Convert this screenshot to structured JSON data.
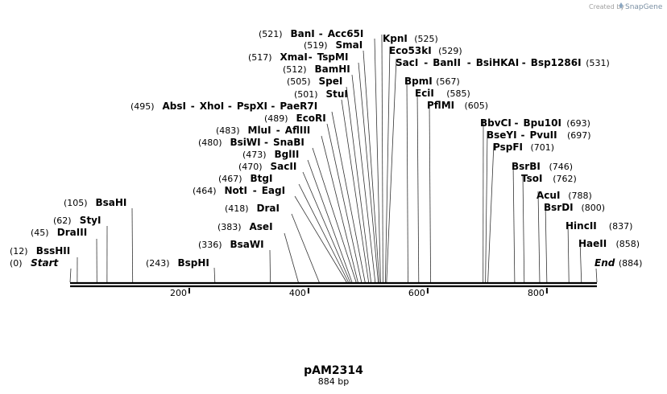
{
  "credit": {
    "prefix": "Created by",
    "brand": "SnapGene",
    "icon": "snapgene-logo-icon"
  },
  "plasmid": {
    "name": "pAM2314",
    "length_label": "884 bp",
    "length": 884
  },
  "ruler": {
    "ticks": [
      200,
      400,
      600,
      800
    ]
  },
  "sites": [
    {
      "pos": 0,
      "pos_label": "(0)",
      "names": [
        "Start"
      ],
      "italic": true
    },
    {
      "pos": 12,
      "pos_label": "(12)",
      "names": [
        "BssHII"
      ]
    },
    {
      "pos": 45,
      "pos_label": "(45)",
      "names": [
        "DraIII"
      ]
    },
    {
      "pos": 62,
      "pos_label": "(62)",
      "names": [
        "StyI"
      ]
    },
    {
      "pos": 105,
      "pos_label": "(105)",
      "names": [
        "BsaHI"
      ]
    },
    {
      "pos": 243,
      "pos_label": "(243)",
      "names": [
        "BspHI"
      ]
    },
    {
      "pos": 336,
      "pos_label": "(336)",
      "names": [
        "BsaWI"
      ]
    },
    {
      "pos": 383,
      "pos_label": "(383)",
      "names": [
        "AseI"
      ]
    },
    {
      "pos": 418,
      "pos_label": "(418)",
      "names": [
        "DraI"
      ]
    },
    {
      "pos": 464,
      "pos_label": "(464)",
      "names": [
        "NotI",
        "EagI"
      ]
    },
    {
      "pos": 467,
      "pos_label": "(467)",
      "names": [
        "BtgI"
      ]
    },
    {
      "pos": 470,
      "pos_label": "(470)",
      "names": [
        "SacII"
      ]
    },
    {
      "pos": 473,
      "pos_label": "(473)",
      "names": [
        "BglII"
      ]
    },
    {
      "pos": 480,
      "pos_label": "(480)",
      "names": [
        "BsiWI",
        "SnaBI"
      ]
    },
    {
      "pos": 483,
      "pos_label": "(483)",
      "names": [
        "MluI",
        "AflIII"
      ]
    },
    {
      "pos": 489,
      "pos_label": "(489)",
      "names": [
        "EcoRI"
      ]
    },
    {
      "pos": 495,
      "pos_label": "(495)",
      "names": [
        "AbsI",
        "XhoI",
        "PspXI",
        "PaeR7I"
      ]
    },
    {
      "pos": 501,
      "pos_label": "(501)",
      "names": [
        "StuI"
      ]
    },
    {
      "pos": 505,
      "pos_label": "(505)",
      "names": [
        "SpeI"
      ]
    },
    {
      "pos": 512,
      "pos_label": "(512)",
      "names": [
        "BamHI"
      ]
    },
    {
      "pos": 517,
      "pos_label": "(517)",
      "names": [
        "XmaI",
        "TspMI"
      ]
    },
    {
      "pos": 519,
      "pos_label": "(519)",
      "names": [
        "SmaI"
      ]
    },
    {
      "pos": 521,
      "pos_label": "(521)",
      "names": [
        "BanI",
        "Acc65I"
      ]
    },
    {
      "pos": 525,
      "pos_label": "(525)",
      "names": [
        "KpnI"
      ]
    },
    {
      "pos": 529,
      "pos_label": "(529)",
      "names": [
        "Eco53kI"
      ]
    },
    {
      "pos": 531,
      "pos_label": "(531)",
      "names": [
        "SacI",
        "BanII",
        "BsiHKAI",
        "Bsp1286I"
      ]
    },
    {
      "pos": 567,
      "pos_label": "(567)",
      "names": [
        "BpmI"
      ]
    },
    {
      "pos": 585,
      "pos_label": "(585)",
      "names": [
        "EciI"
      ]
    },
    {
      "pos": 605,
      "pos_label": "(605)",
      "names": [
        "PflMI"
      ]
    },
    {
      "pos": 693,
      "pos_label": "(693)",
      "names": [
        "BbvCI",
        "Bpu10I"
      ]
    },
    {
      "pos": 697,
      "pos_label": "(697)",
      "names": [
        "BseYI",
        "PvuII"
      ]
    },
    {
      "pos": 701,
      "pos_label": "(701)",
      "names": [
        "PspFI"
      ]
    },
    {
      "pos": 746,
      "pos_label": "(746)",
      "names": [
        "BsrBI"
      ]
    },
    {
      "pos": 762,
      "pos_label": "(762)",
      "names": [
        "TsoI"
      ]
    },
    {
      "pos": 788,
      "pos_label": "(788)",
      "names": [
        "AcuI"
      ]
    },
    {
      "pos": 800,
      "pos_label": "(800)",
      "names": [
        "BsrDI"
      ]
    },
    {
      "pos": 837,
      "pos_label": "(837)",
      "names": [
        "HincII"
      ]
    },
    {
      "pos": 858,
      "pos_label": "(858)",
      "names": [
        "HaeII"
      ]
    },
    {
      "pos": 884,
      "pos_label": "(884)",
      "names": [
        "End"
      ],
      "italic": true
    }
  ]
}
